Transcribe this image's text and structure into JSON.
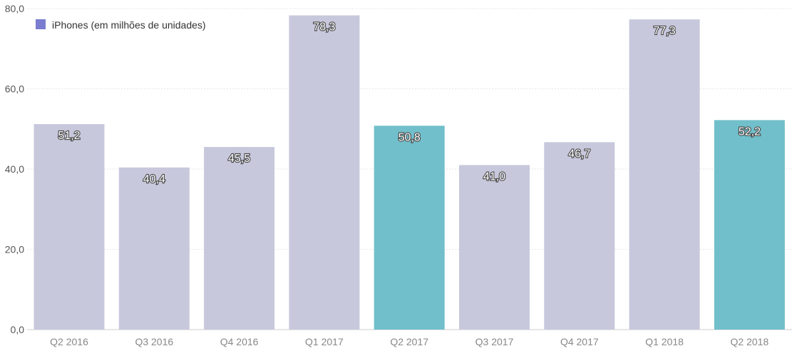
{
  "chart_data": {
    "type": "bar",
    "categories": [
      "Q2 2016",
      "Q3 2016",
      "Q4 2016",
      "Q1 2017",
      "Q2 2017",
      "Q3 2017",
      "Q4 2017",
      "Q1 2018",
      "Q2 2018"
    ],
    "series": [
      {
        "name": "iPhones (em milhões de unidades)",
        "values": [
          51.2,
          40.4,
          45.5,
          78.3,
          50.8,
          41.0,
          46.7,
          77.3,
          52.2
        ],
        "value_labels": [
          "51,2",
          "40,4",
          "45,5",
          "78,3",
          "50,8",
          "41,0",
          "46,7",
          "77,3",
          "52,2"
        ]
      }
    ],
    "highlighted_categories": [
      "Q2 2017",
      "Q2 2018"
    ],
    "ylim": [
      0,
      80
    ],
    "yticks": [
      0,
      20,
      40,
      60,
      80
    ],
    "ytick_labels": [
      "0,0",
      "20,0",
      "40,0",
      "60,0",
      "80,0"
    ],
    "legend_position": "top-left",
    "grid": true,
    "colors": {
      "bar": "#c7c8dc",
      "highlight": "#71bfcb",
      "legend_swatch": "#7a7dd0",
      "grid": "#e6e6e6",
      "axis": "#cccccc"
    }
  }
}
